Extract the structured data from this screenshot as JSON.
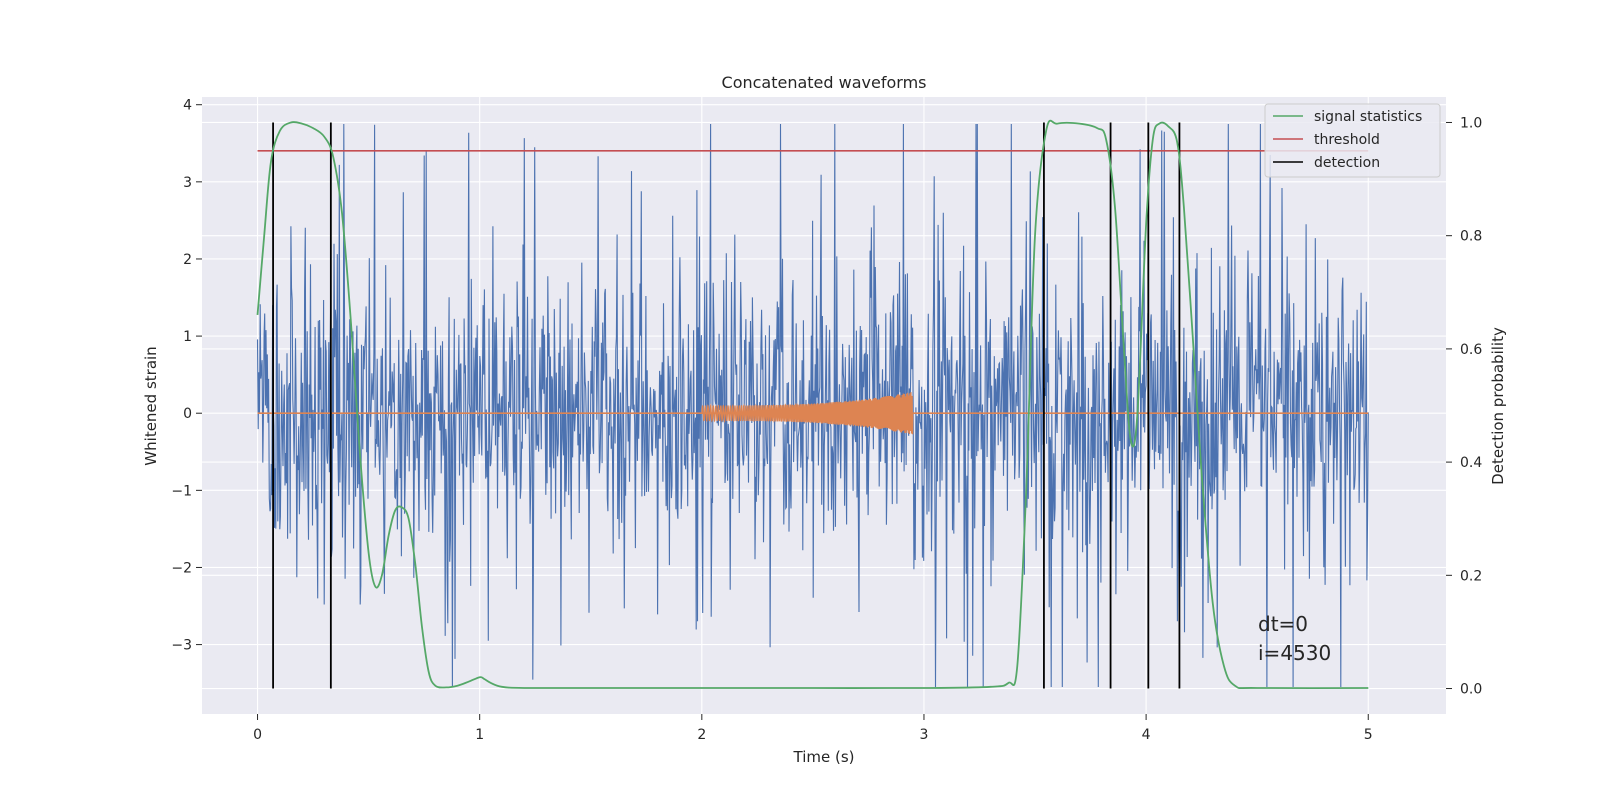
{
  "chart_data": {
    "type": "line",
    "title": "Concatenated waveforms",
    "xlabel": "Time (s)",
    "ylabel": "Whitened strain",
    "y2label": "Detection probability",
    "xlim": [
      -0.25,
      5.35
    ],
    "ylim": [
      -3.9,
      4.1
    ],
    "y2lim": [
      -0.045,
      1.045
    ],
    "xticks": [
      0,
      1,
      2,
      3,
      4,
      5
    ],
    "xtick_labels": [
      "0",
      "1",
      "2",
      "3",
      "4",
      "5"
    ],
    "yticks": [
      -3,
      -2,
      -1,
      0,
      1,
      2,
      3,
      4
    ],
    "ytick_labels": [
      "−3",
      "−2",
      "−1",
      "0",
      "1",
      "2",
      "3",
      "4"
    ],
    "y2ticks": [
      0.0,
      0.2,
      0.4,
      0.6,
      0.8,
      1.0
    ],
    "y2tick_labels": [
      "0.0",
      "0.2",
      "0.4",
      "0.6",
      "0.8",
      "1.0"
    ],
    "grid": true,
    "legend_position": "top-right",
    "legend": [
      {
        "label": "signal statistics",
        "color": "#55a868"
      },
      {
        "label": "threshold",
        "color": "#c44e52"
      },
      {
        "label": "detection",
        "color": "#000000"
      }
    ],
    "colors": {
      "strain": "#4c72b0",
      "injection": "#dd8452",
      "background": "#eaeaf2",
      "grid": "#ffffff"
    },
    "threshold": {
      "value": 0.95,
      "x_range": [
        0,
        5
      ]
    },
    "detections": [
      0.07,
      0.33,
      3.54,
      3.84,
      4.01,
      4.15
    ],
    "injection": {
      "t_start": 2.0,
      "t_end": 2.95,
      "amp_start": 0.1,
      "amp_end": 0.28
    },
    "strain": {
      "t_start": 0,
      "t_end": 5,
      "samples": 1700,
      "core_amplitude": 0.8,
      "max_spike": 3.75,
      "min_spike": -3.55
    },
    "signal_statistics": {
      "t": [
        0.0,
        0.03,
        0.06,
        0.1,
        0.15,
        0.2,
        0.25,
        0.3,
        0.34,
        0.38,
        0.42,
        0.46,
        0.5,
        0.53,
        0.56,
        0.59,
        0.62,
        0.65,
        0.68,
        0.71,
        0.74,
        0.77,
        0.8,
        0.85,
        0.9,
        0.95,
        1.0,
        1.02,
        1.05,
        1.1,
        1.2,
        1.5,
        2.0,
        2.5,
        3.0,
        3.3,
        3.38,
        3.42,
        3.46,
        3.5,
        3.55,
        3.6,
        3.7,
        3.78,
        3.82,
        3.86,
        3.9,
        3.93,
        3.96,
        4.0,
        4.03,
        4.06,
        4.1,
        4.14,
        4.17,
        4.21,
        4.25,
        4.3,
        4.35,
        4.4,
        4.5,
        5.0
      ],
      "p": [
        0.66,
        0.8,
        0.93,
        0.985,
        1.0,
        0.998,
        0.99,
        0.975,
        0.94,
        0.84,
        0.65,
        0.42,
        0.24,
        0.18,
        0.2,
        0.27,
        0.315,
        0.32,
        0.3,
        0.22,
        0.11,
        0.03,
        0.005,
        0.002,
        0.005,
        0.012,
        0.02,
        0.017,
        0.01,
        0.003,
        0.001,
        0.001,
        0.001,
        0.001,
        0.001,
        0.003,
        0.01,
        0.04,
        0.35,
        0.8,
        0.985,
        0.998,
        0.998,
        0.99,
        0.97,
        0.85,
        0.6,
        0.44,
        0.48,
        0.82,
        0.97,
        0.998,
        0.993,
        0.965,
        0.85,
        0.62,
        0.38,
        0.15,
        0.04,
        0.005,
        0.001,
        0.001
      ]
    },
    "annotations": [
      {
        "id": "dt",
        "text": "dt=0"
      },
      {
        "id": "iter",
        "text": "i=4530"
      }
    ]
  }
}
